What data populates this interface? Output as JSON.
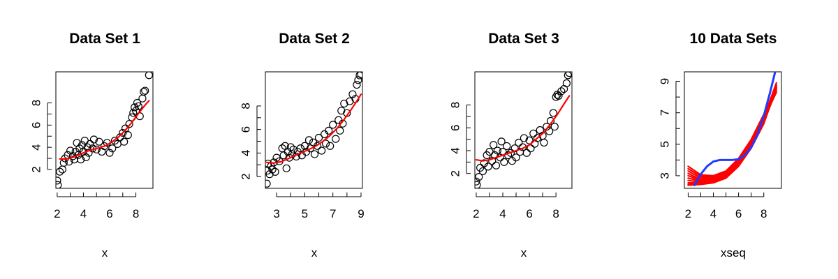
{
  "chart_data": [
    {
      "type": "scatter",
      "title": "Data Set 1",
      "xlabel": "x",
      "ylabel": "",
      "xlim": [
        1.9,
        9.3
      ],
      "ylim": [
        0.3,
        10.8
      ],
      "x_ticks": [
        2,
        4,
        6,
        8
      ],
      "y_ticks": [
        2,
        4,
        6,
        8
      ],
      "points": [
        [
          2.0,
          1.0
        ],
        [
          2.05,
          0.6
        ],
        [
          2.2,
          1.8
        ],
        [
          2.4,
          2.0
        ],
        [
          2.5,
          2.6
        ],
        [
          2.6,
          3.0
        ],
        [
          2.8,
          3.3
        ],
        [
          2.9,
          2.7
        ],
        [
          3.0,
          3.7
        ],
        [
          3.2,
          3.2
        ],
        [
          3.3,
          2.9
        ],
        [
          3.4,
          3.6
        ],
        [
          3.5,
          4.4
        ],
        [
          3.6,
          3.3
        ],
        [
          3.7,
          3.9
        ],
        [
          3.8,
          2.9
        ],
        [
          3.9,
          4.2
        ],
        [
          4.0,
          3.6
        ],
        [
          4.1,
          4.6
        ],
        [
          4.2,
          3.1
        ],
        [
          4.3,
          4.0
        ],
        [
          4.4,
          3.5
        ],
        [
          4.5,
          4.3
        ],
        [
          4.7,
          3.9
        ],
        [
          4.8,
          4.7
        ],
        [
          5.0,
          3.8
        ],
        [
          5.2,
          4.5
        ],
        [
          5.4,
          3.6
        ],
        [
          5.6,
          4.1
        ],
        [
          5.8,
          4.4
        ],
        [
          6.0,
          3.5
        ],
        [
          6.2,
          3.9
        ],
        [
          6.4,
          4.6
        ],
        [
          6.6,
          4.3
        ],
        [
          6.8,
          4.9
        ],
        [
          7.0,
          5.3
        ],
        [
          7.1,
          4.5
        ],
        [
          7.2,
          5.7
        ],
        [
          7.4,
          5.1
        ],
        [
          7.5,
          6.1
        ],
        [
          7.7,
          6.7
        ],
        [
          7.8,
          7.1
        ],
        [
          7.9,
          7.6
        ],
        [
          8.0,
          7.3
        ],
        [
          8.1,
          8.0
        ],
        [
          8.2,
          7.7
        ],
        [
          8.3,
          6.8
        ],
        [
          8.5,
          8.4
        ],
        [
          8.6,
          9.0
        ],
        [
          8.7,
          9.1
        ],
        [
          9.0,
          10.5
        ]
      ],
      "series": [
        {
          "name": "",
          "color": "#ff0000",
          "x": [
            2.2,
            2.7,
            3.2,
            3.7,
            4.2,
            4.7,
            5.2,
            5.7,
            6.2,
            6.7,
            7.2,
            7.7,
            8.2,
            8.7,
            9.0
          ],
          "y": [
            2.95,
            2.95,
            3.1,
            3.35,
            3.6,
            3.8,
            3.95,
            4.15,
            4.5,
            4.95,
            5.55,
            6.25,
            7.05,
            7.8,
            8.2
          ]
        }
      ]
    },
    {
      "type": "scatter",
      "title": "Data Set 2",
      "xlabel": "x",
      "ylabel": "",
      "xlim": [
        2.2,
        9.1
      ],
      "ylim": [
        1.0,
        10.9
      ],
      "x_ticks": [
        3,
        5,
        7,
        9
      ],
      "y_ticks": [
        2,
        4,
        6,
        8
      ],
      "points": [
        [
          2.3,
          1.4
        ],
        [
          2.35,
          2.5
        ],
        [
          2.4,
          3.1
        ],
        [
          2.5,
          2.2
        ],
        [
          2.6,
          2.9
        ],
        [
          2.7,
          2.6
        ],
        [
          2.8,
          3.2
        ],
        [
          2.9,
          2.4
        ],
        [
          3.0,
          3.6
        ],
        [
          3.2,
          3.3
        ],
        [
          3.4,
          4.4
        ],
        [
          3.5,
          3.8
        ],
        [
          3.6,
          4.6
        ],
        [
          3.7,
          2.7
        ],
        [
          3.8,
          4.1
        ],
        [
          3.9,
          3.6
        ],
        [
          4.0,
          4.5
        ],
        [
          4.1,
          3.9
        ],
        [
          4.2,
          4.3
        ],
        [
          4.4,
          3.7
        ],
        [
          4.5,
          4.1
        ],
        [
          4.7,
          4.4
        ],
        [
          4.8,
          3.8
        ],
        [
          5.0,
          4.6
        ],
        [
          5.1,
          4.1
        ],
        [
          5.3,
          5.1
        ],
        [
          5.4,
          4.4
        ],
        [
          5.6,
          4.9
        ],
        [
          5.7,
          3.9
        ],
        [
          5.9,
          4.6
        ],
        [
          6.0,
          5.3
        ],
        [
          6.2,
          4.2
        ],
        [
          6.4,
          5.6
        ],
        [
          6.5,
          4.8
        ],
        [
          6.7,
          5.9
        ],
        [
          6.8,
          4.6
        ],
        [
          7.0,
          6.4
        ],
        [
          7.2,
          5.2
        ],
        [
          7.4,
          6.8
        ],
        [
          7.5,
          5.9
        ],
        [
          7.6,
          7.6
        ],
        [
          7.7,
          6.5
        ],
        [
          7.8,
          8.2
        ],
        [
          8.0,
          7.4
        ],
        [
          8.2,
          8.4
        ],
        [
          8.4,
          9.0
        ],
        [
          8.6,
          8.6
        ],
        [
          8.7,
          9.8
        ],
        [
          8.8,
          10.2
        ],
        [
          8.9,
          10.6
        ],
        [
          9.0,
          10.7
        ]
      ],
      "series": [
        {
          "name": "",
          "color": "#ff0000",
          "x": [
            2.3,
            2.8,
            3.3,
            3.8,
            4.3,
            4.8,
            5.3,
            5.8,
            6.3,
            6.8,
            7.3,
            7.8,
            8.3,
            8.8,
            9.0
          ],
          "y": [
            3.2,
            3.15,
            3.25,
            3.5,
            3.8,
            4.05,
            4.3,
            4.6,
            5.0,
            5.5,
            6.1,
            6.85,
            7.7,
            8.6,
            9.0
          ]
        }
      ]
    },
    {
      "type": "scatter",
      "title": "Data Set 3",
      "xlabel": "x",
      "ylabel": "",
      "xlim": [
        1.9,
        9.2
      ],
      "ylim": [
        0.7,
        10.9
      ],
      "x_ticks": [
        2,
        4,
        6,
        8
      ],
      "y_ticks": [
        2,
        4,
        6,
        8
      ],
      "points": [
        [
          2.0,
          1.3
        ],
        [
          2.05,
          1.0
        ],
        [
          2.2,
          1.7
        ],
        [
          2.3,
          2.5
        ],
        [
          2.5,
          2.2
        ],
        [
          2.6,
          2.9
        ],
        [
          2.8,
          3.6
        ],
        [
          2.9,
          2.6
        ],
        [
          3.0,
          3.9
        ],
        [
          3.2,
          3.1
        ],
        [
          3.3,
          4.5
        ],
        [
          3.4,
          3.6
        ],
        [
          3.5,
          2.7
        ],
        [
          3.6,
          4.0
        ],
        [
          3.8,
          3.4
        ],
        [
          3.9,
          4.8
        ],
        [
          4.0,
          3.9
        ],
        [
          4.1,
          3.0
        ],
        [
          4.3,
          4.4
        ],
        [
          4.4,
          3.6
        ],
        [
          4.6,
          3.8
        ],
        [
          4.7,
          3.1
        ],
        [
          4.9,
          4.2
        ],
        [
          5.0,
          3.4
        ],
        [
          5.2,
          4.7
        ],
        [
          5.3,
          3.9
        ],
        [
          5.5,
          4.3
        ],
        [
          5.6,
          5.1
        ],
        [
          5.8,
          3.8
        ],
        [
          6.0,
          4.9
        ],
        [
          6.1,
          4.2
        ],
        [
          6.3,
          5.5
        ],
        [
          6.4,
          4.6
        ],
        [
          6.6,
          5.1
        ],
        [
          6.8,
          5.8
        ],
        [
          7.0,
          5.3
        ],
        [
          7.1,
          4.7
        ],
        [
          7.3,
          6.1
        ],
        [
          7.5,
          5.7
        ],
        [
          7.6,
          6.6
        ],
        [
          7.8,
          7.3
        ],
        [
          7.9,
          6.1
        ],
        [
          8.0,
          8.7
        ],
        [
          8.1,
          8.9
        ],
        [
          8.2,
          8.8
        ],
        [
          8.4,
          9.2
        ],
        [
          8.6,
          9.4
        ],
        [
          8.8,
          9.9
        ],
        [
          8.9,
          10.6
        ],
        [
          9.0,
          10.8
        ]
      ],
      "series": [
        {
          "name": "",
          "color": "#ff0000",
          "x": [
            2.0,
            2.5,
            3.0,
            3.5,
            4.0,
            4.5,
            5.0,
            5.5,
            6.0,
            6.5,
            7.0,
            7.5,
            8.0,
            8.5,
            9.0
          ],
          "y": [
            3.2,
            3.1,
            3.2,
            3.4,
            3.6,
            3.8,
            4.0,
            4.2,
            4.5,
            5.0,
            5.5,
            6.2,
            7.0,
            7.9,
            8.8
          ]
        }
      ]
    },
    {
      "type": "line",
      "title": "10 Data Sets",
      "xlabel": "xseq",
      "ylabel": "",
      "xlim": [
        1.7,
        9.4
      ],
      "ylim": [
        2.2,
        9.6
      ],
      "x_ticks": [
        2,
        4,
        6,
        8
      ],
      "y_ticks": [
        3,
        5,
        7,
        9
      ],
      "series": [
        {
          "name": "",
          "color": "#ff0000",
          "x": [
            2,
            3,
            4,
            5,
            6,
            7,
            8,
            9
          ],
          "y": [
            3.6,
            3.05,
            3.0,
            3.3,
            4.1,
            5.3,
            6.9,
            8.5
          ]
        },
        {
          "name": "",
          "color": "#ff0000",
          "x": [
            2,
            3,
            4,
            5,
            6,
            7,
            8,
            9
          ],
          "y": [
            3.45,
            2.95,
            2.95,
            3.25,
            4.0,
            5.2,
            6.8,
            8.7
          ]
        },
        {
          "name": "",
          "color": "#ff0000",
          "x": [
            2,
            3,
            4,
            5,
            6,
            7,
            8,
            9
          ],
          "y": [
            3.3,
            2.85,
            2.9,
            3.2,
            3.95,
            5.1,
            6.7,
            8.9
          ]
        },
        {
          "name": "",
          "color": "#ff0000",
          "x": [
            2,
            3,
            4,
            5,
            6,
            7,
            8,
            9
          ],
          "y": [
            3.15,
            2.75,
            2.85,
            3.15,
            3.9,
            5.05,
            6.6,
            8.3
          ]
        },
        {
          "name": "",
          "color": "#ff0000",
          "x": [
            2,
            3,
            4,
            5,
            6,
            7,
            8,
            9
          ],
          "y": [
            3.0,
            2.7,
            2.8,
            3.1,
            3.85,
            5.0,
            6.55,
            8.6
          ]
        },
        {
          "name": "",
          "color": "#ff0000",
          "x": [
            2,
            3,
            4,
            5,
            6,
            7,
            8,
            9
          ],
          "y": [
            2.85,
            2.65,
            2.75,
            3.05,
            3.8,
            4.95,
            6.5,
            8.8
          ]
        },
        {
          "name": "",
          "color": "#ff0000",
          "x": [
            2,
            3,
            4,
            5,
            6,
            7,
            8,
            9
          ],
          "y": [
            2.7,
            2.6,
            2.7,
            3.0,
            3.75,
            4.9,
            6.45,
            8.4
          ]
        },
        {
          "name": "",
          "color": "#ff0000",
          "x": [
            2,
            3,
            4,
            5,
            6,
            7,
            8,
            9
          ],
          "y": [
            2.55,
            2.55,
            2.65,
            2.95,
            3.7,
            4.85,
            6.4,
            8.7
          ]
        },
        {
          "name": "",
          "color": "#ff0000",
          "x": [
            2,
            3,
            4,
            5,
            6,
            7,
            8,
            9
          ],
          "y": [
            2.45,
            2.5,
            2.6,
            2.9,
            3.65,
            4.8,
            6.35,
            8.5
          ]
        },
        {
          "name": "",
          "color": "#ff0000",
          "x": [
            2,
            3,
            4,
            5,
            6,
            7,
            8,
            9
          ],
          "y": [
            2.4,
            2.45,
            2.55,
            2.85,
            3.6,
            4.75,
            6.3,
            8.6
          ]
        },
        {
          "name": "",
          "color": "#1f3bff",
          "x": [
            2.5,
            3.0,
            3.5,
            4.0,
            4.5,
            5.0,
            5.5,
            6.0,
            6.5,
            7.0,
            7.5,
            8.0,
            8.5,
            8.9
          ],
          "y": [
            2.4,
            3.1,
            3.6,
            3.9,
            4.0,
            4.0,
            4.0,
            4.05,
            4.3,
            4.8,
            5.6,
            6.8,
            8.3,
            9.6
          ]
        }
      ]
    }
  ]
}
